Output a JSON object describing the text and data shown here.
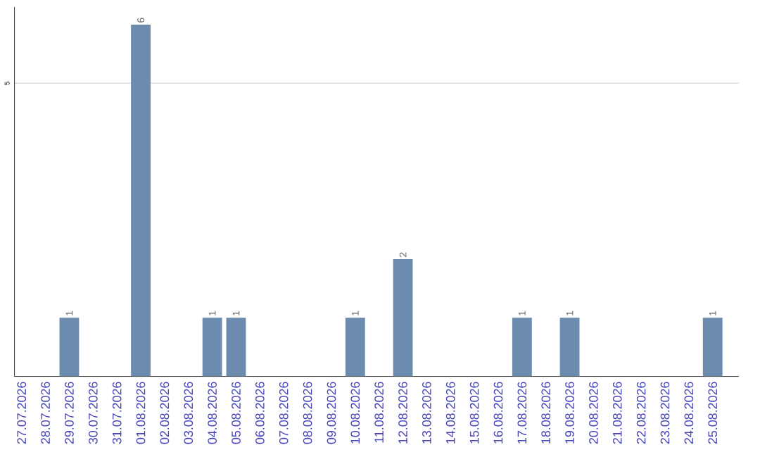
{
  "chart_data": {
    "type": "bar",
    "categories": [
      "27.07.2026",
      "28.07.2026",
      "29.07.2026",
      "30.07.2026",
      "31.07.2026",
      "01.08.2026",
      "02.08.2026",
      "03.08.2026",
      "04.08.2026",
      "05.08.2026",
      "06.08.2026",
      "07.08.2026",
      "08.08.2026",
      "09.08.2026",
      "10.08.2026",
      "11.08.2026",
      "12.08.2026",
      "13.08.2026",
      "14.08.2026",
      "15.08.2026",
      "16.08.2026",
      "17.08.2026",
      "18.08.2026",
      "19.08.2026",
      "20.08.2026",
      "21.08.2026",
      "22.08.2026",
      "23.08.2026",
      "24.08.2026",
      "25.08.2026"
    ],
    "values": [
      0,
      0,
      1,
      0,
      0,
      6,
      0,
      0,
      1,
      1,
      0,
      0,
      0,
      0,
      1,
      0,
      2,
      0,
      0,
      0,
      0,
      1,
      0,
      1,
      0,
      0,
      0,
      0,
      0,
      1
    ],
    "value_labels": [
      null,
      null,
      "1",
      null,
      null,
      "6",
      null,
      null,
      "1",
      "1",
      null,
      null,
      null,
      null,
      "1",
      null,
      "2",
      null,
      null,
      null,
      null,
      "1",
      null,
      "1",
      null,
      null,
      null,
      null,
      null,
      "1"
    ],
    "color": "#6b8cae",
    "ylim": [
      0,
      6.3
    ],
    "yticks": [
      5
    ],
    "grid": "y"
  }
}
